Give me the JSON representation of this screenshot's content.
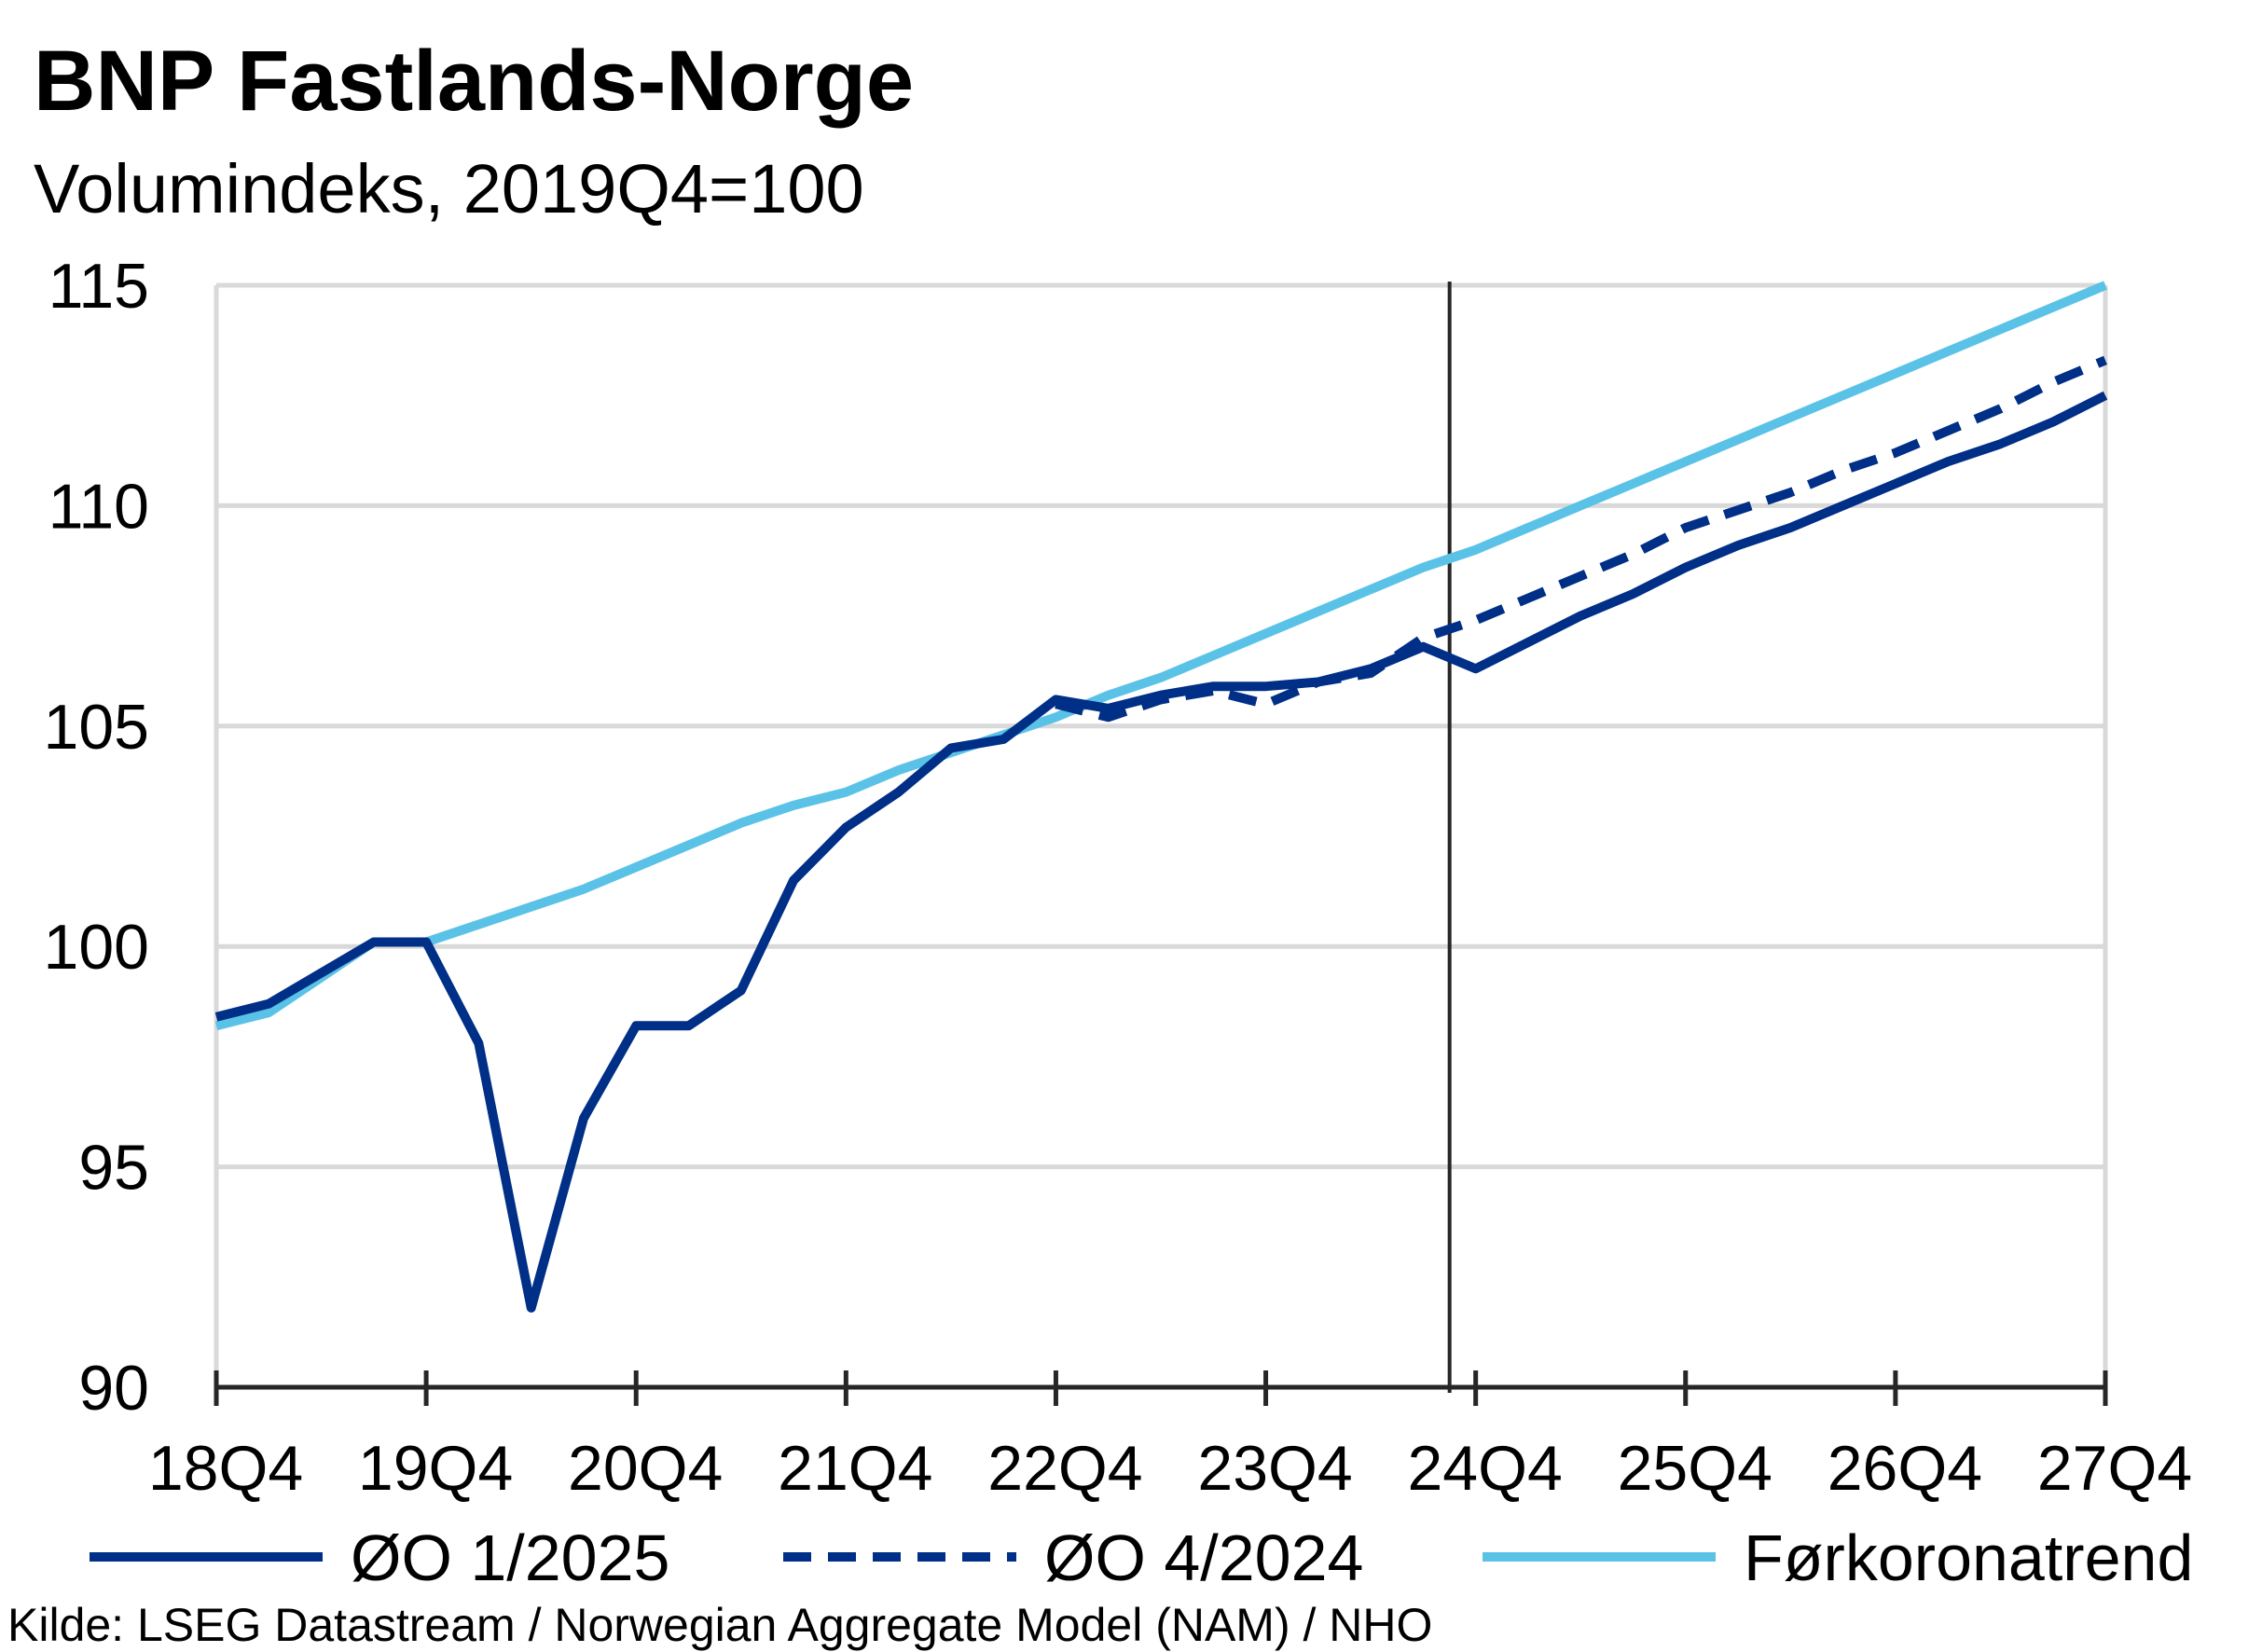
{
  "chart_data": {
    "type": "line",
    "title": "BNP Fastlands-Norge",
    "subtitle": "Volumindeks, 2019Q4=100",
    "source": "Kilde: LSEG Datastream / Norwegian Aggregate Model (NAM) / NHO",
    "ylim": [
      90,
      115
    ],
    "yticks": [
      90,
      95,
      100,
      105,
      110,
      115
    ],
    "x_tick_labels": [
      "18Q4",
      "19Q4",
      "20Q4",
      "21Q4",
      "22Q4",
      "23Q4",
      "24Q4",
      "25Q4",
      "26Q4",
      "27Q4"
    ],
    "x_quarters": [
      "18Q4",
      "19Q1",
      "19Q2",
      "19Q3",
      "19Q4",
      "20Q1",
      "20Q2",
      "20Q3",
      "20Q4",
      "21Q1",
      "21Q2",
      "21Q3",
      "21Q4",
      "22Q1",
      "22Q2",
      "22Q3",
      "22Q4",
      "23Q1",
      "23Q2",
      "23Q3",
      "23Q4",
      "24Q1",
      "24Q2",
      "24Q3",
      "24Q4",
      "25Q1",
      "25Q2",
      "25Q3",
      "25Q4",
      "26Q1",
      "26Q2",
      "26Q3",
      "26Q4",
      "27Q1",
      "27Q2",
      "27Q3",
      "27Q4"
    ],
    "vertical_line_at": "24Q4",
    "grid": true,
    "legend_placement": "bottom",
    "series": [
      {
        "name": "ØO 1/2025",
        "color": "#002F87",
        "dash": "solid",
        "values": [
          98.4,
          98.7,
          99.4,
          100.1,
          100.1,
          97.8,
          91.8,
          96.1,
          98.2,
          98.2,
          99.0,
          101.5,
          102.7,
          103.5,
          104.5,
          104.7,
          105.6,
          105.4,
          105.7,
          105.9,
          105.9,
          106.0,
          106.3,
          106.8,
          106.3,
          106.9,
          107.5,
          108.0,
          108.6,
          109.1,
          109.5,
          110.0,
          110.5,
          111.0,
          111.4,
          111.9,
          112.5
        ]
      },
      {
        "name": "ØO 4/2024",
        "color": "#002F87",
        "dash": "dashed",
        "values": [
          null,
          null,
          null,
          null,
          null,
          null,
          null,
          null,
          null,
          null,
          null,
          null,
          null,
          null,
          null,
          null,
          105.5,
          105.2,
          105.6,
          105.8,
          105.5,
          106.0,
          106.2,
          107.0,
          107.4,
          107.9,
          108.4,
          108.9,
          109.5,
          109.9,
          110.3,
          110.8,
          111.2,
          111.7,
          112.2,
          112.8,
          113.3
        ]
      },
      {
        "name": "Førkoronatrend",
        "color": "#5BC2E7",
        "dash": "solid",
        "values": [
          98.2,
          98.5,
          99.3,
          100.1,
          100.1,
          100.5,
          100.9,
          101.3,
          101.8,
          102.3,
          102.8,
          103.2,
          103.5,
          104.0,
          104.4,
          104.8,
          105.2,
          105.7,
          106.1,
          106.6,
          107.1,
          107.6,
          108.1,
          108.6,
          109.0,
          109.5,
          110.0,
          110.5,
          111.0,
          111.5,
          112.0,
          112.5,
          113.0,
          113.5,
          114.0,
          114.5,
          115.0
        ]
      }
    ]
  }
}
